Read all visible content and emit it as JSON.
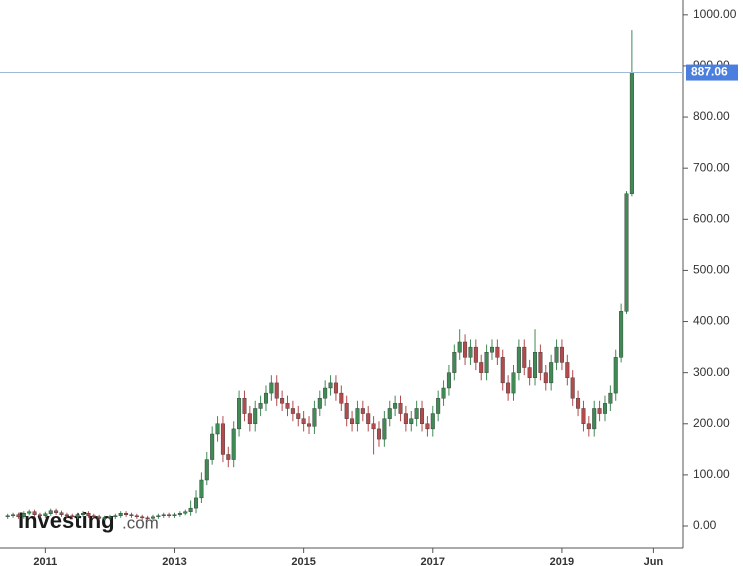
{
  "chart_data": {
    "type": "candlestick",
    "categories": [
      null,
      null,
      null,
      null,
      null,
      null,
      null,
      "2011",
      null,
      null,
      null,
      null,
      null,
      null,
      null,
      null,
      null,
      null,
      null,
      null,
      null,
      null,
      null,
      null,
      null,
      null,
      null,
      null,
      null,
      null,
      null,
      "2013",
      null,
      null,
      null,
      null,
      null,
      null,
      null,
      null,
      null,
      null,
      null,
      null,
      null,
      null,
      null,
      null,
      null,
      null,
      null,
      null,
      null,
      null,
      null,
      "2015",
      null,
      null,
      null,
      null,
      null,
      null,
      null,
      null,
      null,
      null,
      null,
      null,
      null,
      null,
      null,
      null,
      null,
      null,
      null,
      null,
      null,
      null,
      null,
      "2017",
      null,
      null,
      null,
      null,
      null,
      null,
      null,
      null,
      null,
      null,
      null,
      null,
      null,
      null,
      null,
      null,
      null,
      null,
      null,
      null,
      null,
      null,
      null,
      "2019",
      null,
      null,
      null,
      null,
      null,
      null,
      null,
      null,
      null,
      null,
      null,
      null,
      null,
      null,
      null,
      null,
      "Jun",
      null,
      null,
      null,
      null,
      null
    ],
    "open": [
      18,
      20,
      22,
      18,
      25,
      28,
      22,
      20,
      24,
      30,
      26,
      22,
      20,
      18,
      22,
      25,
      20,
      18,
      15,
      16,
      18,
      20,
      25,
      22,
      20,
      18,
      16,
      15,
      18,
      20,
      22,
      20,
      22,
      25,
      28,
      35,
      55,
      90,
      130,
      180,
      200,
      140,
      130,
      190,
      250,
      220,
      200,
      230,
      240,
      260,
      280,
      250,
      240,
      230,
      220,
      210,
      200,
      195,
      230,
      250,
      270,
      280,
      260,
      240,
      210,
      200,
      230,
      220,
      200,
      190,
      170,
      210,
      230,
      240,
      220,
      200,
      210,
      230,
      200,
      190,
      220,
      250,
      270,
      300,
      340,
      360,
      330,
      350,
      320,
      300,
      340,
      350,
      330,
      280,
      260,
      300,
      350,
      310,
      290,
      340,
      300,
      280,
      320,
      350,
      320,
      290,
      250,
      230,
      200,
      190,
      230,
      220,
      240,
      260,
      330,
      420,
      650,
      null,
      null,
      null,
      null,
      null,
      null,
      null,
      null,
      null
    ],
    "high": [
      24,
      26,
      26,
      29,
      32,
      32,
      26,
      28,
      34,
      34,
      30,
      26,
      24,
      26,
      29,
      29,
      24,
      22,
      20,
      22,
      24,
      29,
      29,
      26,
      24,
      22,
      20,
      22,
      24,
      26,
      26,
      26,
      29,
      32,
      50,
      70,
      105,
      145,
      195,
      215,
      215,
      155,
      205,
      265,
      265,
      235,
      245,
      255,
      275,
      295,
      295,
      265,
      255,
      245,
      235,
      225,
      215,
      245,
      265,
      285,
      295,
      295,
      275,
      255,
      225,
      245,
      245,
      235,
      215,
      205,
      225,
      245,
      255,
      255,
      235,
      225,
      245,
      245,
      215,
      235,
      265,
      285,
      315,
      355,
      385,
      375,
      365,
      365,
      335,
      355,
      365,
      365,
      345,
      295,
      315,
      365,
      365,
      325,
      385,
      355,
      315,
      335,
      365,
      365,
      335,
      305,
      265,
      245,
      215,
      245,
      245,
      255,
      275,
      345,
      435,
      655,
      970,
      null,
      null,
      null,
      null,
      null,
      null,
      null,
      null,
      null
    ],
    "low": [
      14,
      16,
      14,
      14,
      21,
      18,
      16,
      16,
      20,
      22,
      18,
      16,
      14,
      14,
      18,
      16,
      14,
      11,
      11,
      12,
      14,
      16,
      18,
      16,
      14,
      12,
      11,
      11,
      14,
      16,
      16,
      16,
      18,
      21,
      20,
      25,
      45,
      80,
      120,
      165,
      125,
      115,
      115,
      175,
      205,
      185,
      185,
      215,
      225,
      245,
      235,
      225,
      215,
      205,
      195,
      185,
      180,
      180,
      215,
      235,
      255,
      245,
      225,
      195,
      185,
      185,
      205,
      185,
      140,
      155,
      155,
      195,
      215,
      205,
      185,
      185,
      195,
      185,
      175,
      175,
      205,
      235,
      255,
      285,
      325,
      315,
      315,
      305,
      285,
      285,
      325,
      315,
      265,
      245,
      245,
      285,
      295,
      275,
      275,
      285,
      265,
      265,
      305,
      305,
      275,
      235,
      215,
      185,
      175,
      175,
      205,
      205,
      225,
      245,
      320,
      415,
      645,
      null,
      null,
      null,
      null,
      null,
      null,
      null,
      null,
      null
    ],
    "close": [
      20,
      22,
      18,
      25,
      28,
      22,
      20,
      24,
      30,
      26,
      22,
      20,
      18,
      22,
      25,
      20,
      18,
      15,
      16,
      18,
      20,
      25,
      22,
      20,
      18,
      16,
      15,
      18,
      20,
      22,
      20,
      22,
      25,
      28,
      35,
      55,
      90,
      130,
      180,
      200,
      140,
      130,
      190,
      250,
      220,
      200,
      230,
      240,
      260,
      280,
      250,
      240,
      230,
      220,
      210,
      200,
      195,
      230,
      250,
      270,
      280,
      260,
      240,
      210,
      200,
      230,
      220,
      200,
      190,
      170,
      210,
      230,
      240,
      220,
      200,
      210,
      230,
      200,
      190,
      220,
      250,
      270,
      300,
      340,
      360,
      330,
      350,
      320,
      300,
      340,
      350,
      330,
      280,
      260,
      300,
      350,
      310,
      290,
      340,
      300,
      280,
      320,
      350,
      320,
      290,
      250,
      230,
      200,
      190,
      230,
      220,
      240,
      260,
      330,
      420,
      650,
      887.06,
      null,
      null,
      null,
      null,
      null,
      null,
      null,
      null,
      null
    ],
    "up_color": "#3f8a55",
    "down_color": "#b34a4c",
    "price_line_color": "#4a7fe0",
    "ylim": [
      -43,
      1029
    ],
    "yticks": [
      {
        "value": 0,
        "label": "0.00"
      },
      {
        "value": 100,
        "label": "100.00"
      },
      {
        "value": 200,
        "label": "200.00"
      },
      {
        "value": 300,
        "label": "300.00"
      },
      {
        "value": 400,
        "label": "400.00"
      },
      {
        "value": 500,
        "label": "500.00"
      },
      {
        "value": 600,
        "label": "600.00"
      },
      {
        "value": 700,
        "label": "700.00"
      },
      {
        "value": 800,
        "label": "800.00"
      },
      {
        "value": 900,
        "label": "900.00"
      },
      {
        "value": 1000,
        "label": "1000.00"
      }
    ],
    "watermark": [
      "Investing",
      ".com"
    ]
  }
}
